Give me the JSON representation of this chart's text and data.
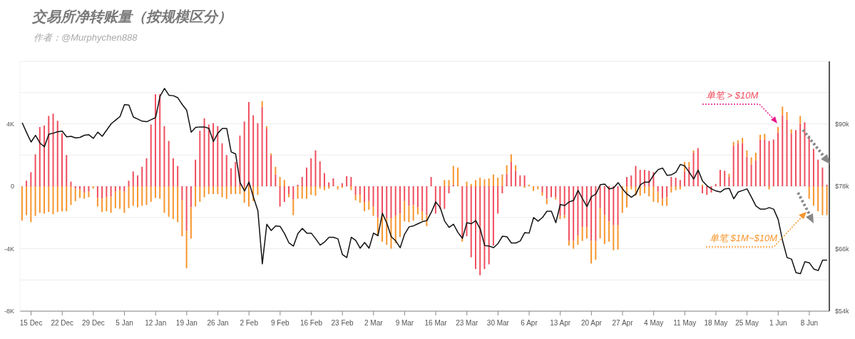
{
  "chart_data": {
    "type": "bar",
    "title": "交易所净转账量（按规模区分）",
    "subtitle": "作者：@Murphychen888",
    "categories": [
      null,
      null,
      "15 Dec",
      null,
      null,
      null,
      null,
      null,
      null,
      "22 Dec",
      null,
      null,
      null,
      null,
      null,
      null,
      "29 Dec",
      null,
      null,
      null,
      null,
      null,
      null,
      "5 Jan",
      null,
      null,
      null,
      null,
      null,
      null,
      "12 Jan",
      null,
      null,
      null,
      null,
      null,
      null,
      "19 Jan",
      null,
      null,
      null,
      null,
      null,
      null,
      "26 Jan",
      null,
      null,
      null,
      null,
      null,
      null,
      "2 Feb",
      null,
      null,
      null,
      null,
      null,
      null,
      "9 Feb",
      null,
      null,
      null,
      null,
      null,
      null,
      "16 Feb",
      null,
      null,
      null,
      null,
      null,
      null,
      "23 Feb",
      null,
      null,
      null,
      null,
      null,
      null,
      "2 Mar",
      null,
      null,
      null,
      null,
      null,
      null,
      "9 Mar",
      null,
      null,
      null,
      null,
      null,
      null,
      "16 Mar",
      null,
      null,
      null,
      null,
      null,
      null,
      "23 Mar",
      null,
      null,
      null,
      null,
      null,
      null,
      "30 Mar",
      null,
      null,
      null,
      null,
      null,
      null,
      "6 Apr",
      null,
      null,
      null,
      null,
      null,
      null,
      "13 Apr",
      null,
      null,
      null,
      null,
      null,
      null,
      "20 Apr",
      null,
      null,
      null,
      null,
      null,
      null,
      "27 Apr",
      null,
      null,
      null,
      null,
      null,
      null,
      "4 May",
      null,
      null,
      null,
      null,
      null,
      null,
      "11 May",
      null,
      null,
      null,
      null,
      null,
      null,
      "18 May",
      null,
      null,
      null,
      null,
      null,
      null,
      "25 May",
      null,
      null,
      null,
      null,
      null,
      null,
      "1 Jun",
      null,
      null,
      null,
      null,
      null,
      null,
      "8 Jun",
      null,
      null,
      null,
      null
    ],
    "stacked": true,
    "series": [
      {
        "name": "单笔 > $10M",
        "color": "#f04e5e",
        "values": [
          0,
          350,
          900,
          2050,
          3800,
          3900,
          4500,
          4650,
          4200,
          3400,
          2000,
          300,
          -150,
          -200,
          -400,
          -350,
          0,
          -750,
          -800,
          -700,
          -650,
          -350,
          -250,
          -350,
          350,
          950,
          700,
          1250,
          1800,
          3950,
          5900,
          5900,
          3850,
          2900,
          1800,
          1300,
          -900,
          -2850,
          -1350,
          1700,
          3550,
          4350,
          3950,
          4050,
          3850,
          2750,
          2000,
          1150,
          1550,
          3250,
          4150,
          5400,
          4550,
          4050,
          5100,
          3700,
          2000,
          750,
          -1300,
          -1000,
          -500,
          -850,
          100,
          600,
          1200,
          1800,
          2300,
          1600,
          850,
          250,
          500,
          0,
          200,
          650,
          600,
          -550,
          -550,
          -1000,
          -950,
          -1300,
          -2000,
          -1900,
          -2050,
          -2050,
          -1900,
          -1750,
          -950,
          -1250,
          -1200,
          -1350,
          -1600,
          -1850,
          600,
          -1750,
          -1450,
          -1450,
          -450,
          100,
          0,
          -3350,
          -3200,
          -4550,
          -5300,
          -5700,
          -5300,
          -5000,
          -3800,
          -1750,
          -450,
          800,
          1550,
          1000,
          700,
          700,
          0,
          0,
          0,
          -400,
          -800,
          -700,
          -700,
          -1900,
          -1850,
          -3500,
          -3500,
          -3150,
          -2600,
          -2600,
          -3500,
          -3500,
          -1400,
          -1850,
          -2250,
          -2500,
          -2500,
          0,
          600,
          700,
          1300,
          1050,
          1050,
          1000,
          900,
          -350,
          -800,
          -700,
          600,
          550,
          400,
          950,
          1250,
          2150,
          2450,
          -450,
          -550,
          -400,
          150,
          1050,
          1000,
          600,
          2600,
          2750,
          2750,
          1900,
          1400,
          1650,
          3000,
          3000,
          2900,
          3000,
          3450,
          4550,
          4250,
          3400,
          3600,
          4000,
          4100,
          3250,
          2400,
          1700,
          1200,
          100
        ]
      },
      {
        "name": "单笔 $1M~$10M",
        "color": "#f7952c",
        "values": [
          -2200,
          -1850,
          -2300,
          -1900,
          -1700,
          -1750,
          -1650,
          -1800,
          -1650,
          -1600,
          -1600,
          -1200,
          -800,
          -550,
          -400,
          -350,
          -150,
          -550,
          -850,
          -900,
          -1050,
          -1050,
          -1200,
          -1350,
          -1400,
          -1250,
          -1350,
          -1250,
          -1200,
          -1000,
          -750,
          -800,
          -1700,
          -1950,
          -2100,
          -2300,
          -2300,
          -2400,
          -2000,
          -1300,
          -1000,
          -700,
          -500,
          -500,
          -500,
          -700,
          -800,
          -500,
          -500,
          -500,
          -1050,
          -1300,
          -950,
          -550,
          350,
          150,
          100,
          500,
          600,
          400,
          -200,
          -1000,
          -800,
          -800,
          -800,
          -550,
          -600,
          -150,
          -250,
          -150,
          0,
          -200,
          -100,
          0,
          -250,
          -350,
          -500,
          -600,
          -550,
          -600,
          -1150,
          -1650,
          -1700,
          -1950,
          -1750,
          -1500,
          -1300,
          -1050,
          -1000,
          -450,
          -600,
          -700,
          0,
          0,
          0,
          400,
          400,
          1200,
          1200,
          -200,
          300,
          150,
          400,
          550,
          450,
          500,
          750,
          550,
          750,
          550,
          500,
          350,
          0,
          -100,
          100,
          -300,
          -200,
          -200,
          -350,
          0,
          -150,
          -200,
          -200,
          -300,
          -500,
          -600,
          -900,
          -750,
          -1450,
          -1200,
          -1950,
          -1850,
          -1300,
          -1600,
          -1550,
          -1700,
          -1350,
          -200,
          -600,
          -600,
          -450,
          -650,
          -1000,
          -700,
          -450,
          -550,
          -400,
          -250,
          -200,
          600,
          300,
          150,
          0,
          100,
          0,
          0,
          0,
          0,
          0,
          200,
          250,
          200,
          350,
          400,
          450,
          500,
          300,
          350,
          -200,
          0,
          350,
          550,
          500,
          250,
          0,
          500,
          0,
          -800,
          -1250,
          -1600,
          -1850,
          -1850
        ]
      },
      {
        "type": "line",
        "axis": "y2",
        "color": "#111111",
        "values": [
          90200,
          88300,
          86500,
          87800,
          86300,
          85600,
          88000,
          88200,
          88500,
          88600,
          87500,
          87600,
          87300,
          87400,
          87800,
          87900,
          87200,
          88400,
          87600,
          88800,
          90000,
          90700,
          91400,
          93700,
          93600,
          91300,
          90900,
          90500,
          90400,
          90800,
          91200,
          95300,
          96800,
          95500,
          95400,
          95000,
          93700,
          92600,
          88400,
          89300,
          89400,
          89400,
          89100,
          86600,
          88200,
          89100,
          89100,
          84600,
          84200,
          78700,
          77100,
          78800,
          75900,
          73300,
          63100,
          70700,
          69500,
          70400,
          70300,
          68900,
          67100,
          66500,
          68900,
          69900,
          69000,
          69000,
          67900,
          66700,
          67300,
          68200,
          68200,
          67900,
          64900,
          64300,
          68200,
          67600,
          66100,
          67200,
          66100,
          69000,
          68500,
          72800,
          70900,
          68300,
          67500,
          66200,
          68800,
          70200,
          70400,
          70800,
          71200,
          71400,
          73000,
          75000,
          73900,
          71300,
          70100,
          70700,
          69100,
          68000,
          71000,
          70800,
          71400,
          69800,
          66600,
          66500,
          66200,
          67000,
          68400,
          68300,
          67100,
          67100,
          67500,
          69100,
          69000,
          72000,
          71300,
          72000,
          73200,
          73200,
          71000,
          74500,
          74300,
          75000,
          75300,
          77200,
          75600,
          74100,
          76000,
          76500,
          78300,
          78400,
          77500,
          77700,
          78700,
          77500,
          76500,
          75900,
          76500,
          78300,
          78800,
          78800,
          80200,
          81200,
          81500,
          80100,
          80200,
          80700,
          82200,
          81900,
          80700,
          79400,
          81100,
          79000,
          78100,
          77500,
          77100,
          76900,
          77500,
          77600,
          75600,
          76900,
          77200,
          77500,
          75900,
          74200,
          73600,
          73600,
          73900,
          73600,
          71600,
          67500,
          64300,
          64000,
          61400,
          61200,
          63500,
          63300,
          62100,
          61800,
          63800,
          63800
        ]
      }
    ],
    "ylim": [
      -8000,
      8000
    ],
    "yticks": [
      {
        "value": -8000,
        "label": "-8K"
      },
      {
        "value": -6000,
        "label": null
      },
      {
        "value": -4000,
        "label": "-4K"
      },
      {
        "value": -2000,
        "label": null
      },
      0,
      {
        "value": 2000,
        "label": null
      },
      {
        "value": 4000,
        "label": "4K"
      },
      {
        "value": 6000,
        "label": null
      },
      {
        "value": 8000,
        "label": null
      }
    ],
    "y2lim": [
      54000,
      102000
    ],
    "y2ticks": [
      {
        "value": 54000,
        "label": "$54k"
      },
      {
        "value": 66000,
        "label": "$66k"
      },
      {
        "value": 78000,
        "label": "$78k"
      },
      {
        "value": 90000,
        "label": "$90k"
      }
    ],
    "grid": "y"
  }
}
